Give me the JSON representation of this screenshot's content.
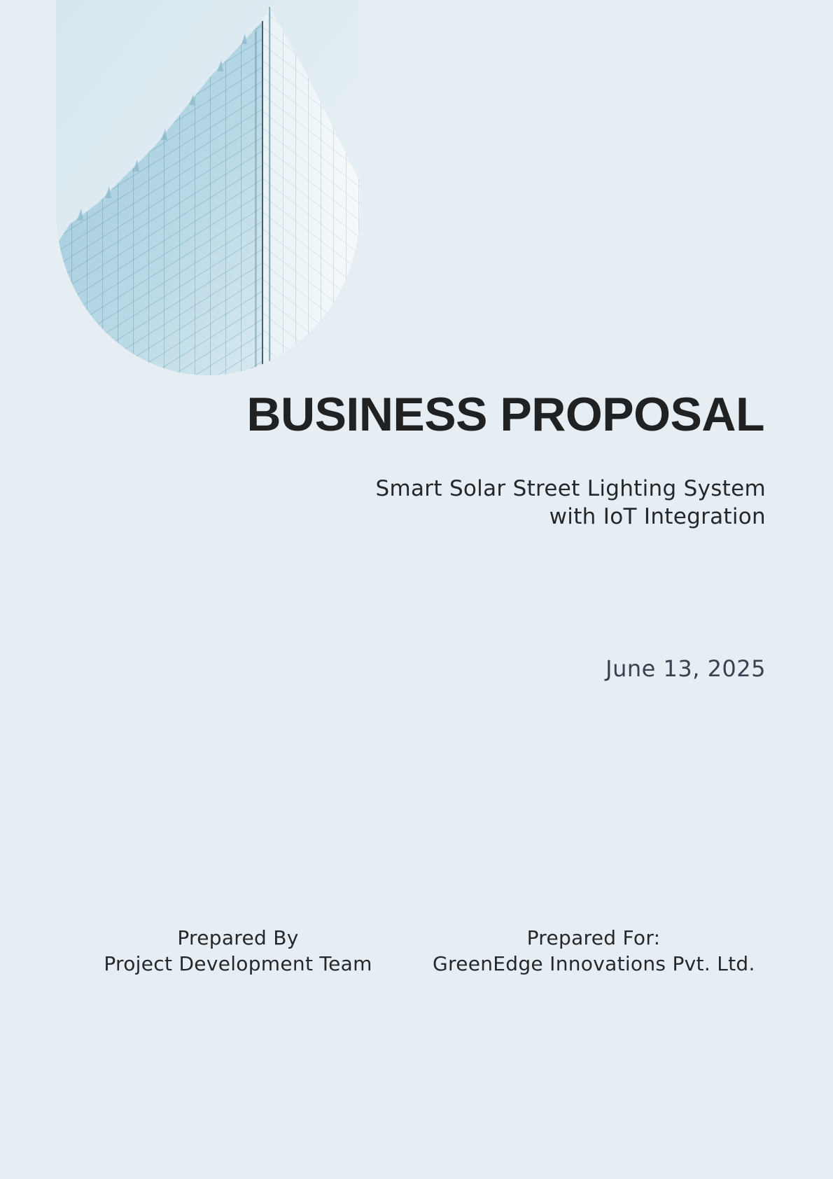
{
  "document": {
    "title": "BUSINESS PROPOSAL",
    "subtitle_line1": "Smart Solar Street Lighting System",
    "subtitle_line2": "with IoT Integration",
    "date": "June 13, 2025",
    "prepared_by": {
      "label": "Prepared By",
      "value": "Project Development Team"
    },
    "prepared_for": {
      "label": "Prepared For:",
      "value": "GreenEdge Innovations Pvt. Ltd."
    }
  },
  "colors": {
    "background": "#e6eef4",
    "title": "#1f2123",
    "text": "#25282b",
    "date": "#3a4150",
    "glass_light": "#dfecf2",
    "glass_mid": "#a9cddd",
    "glass_dark": "#7fb3c8"
  },
  "image": {
    "icon": "glass-building-image"
  }
}
